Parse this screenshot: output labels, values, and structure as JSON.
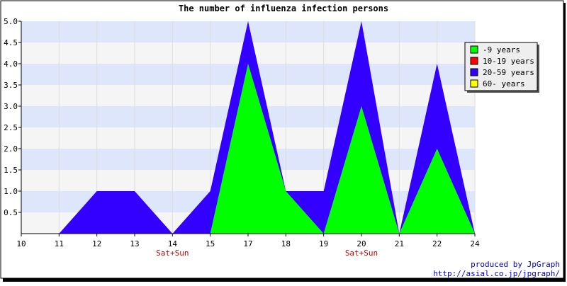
{
  "chart_data": {
    "type": "area",
    "stacked": true,
    "title": "The number of influenza infection persons",
    "xlabel": "",
    "ylabel": "",
    "x": [
      "10",
      "11",
      "12",
      "13",
      "14",
      "15",
      "17",
      "18",
      "19",
      "20",
      "21",
      "22",
      "24"
    ],
    "sub_labels": [
      "",
      "",
      "",
      "",
      "Sat+Sun",
      "",
      "",
      "",
      "",
      "Sat+Sun",
      "",
      "",
      ""
    ],
    "ylim": [
      0,
      5.0
    ],
    "yticks": [
      "0.5",
      "1.0",
      "1.5",
      "2.0",
      "2.5",
      "3.0",
      "3.5",
      "4.0",
      "4.5",
      "5.0"
    ],
    "grid": true,
    "legend_position": "top-right",
    "series": [
      {
        "name": "-9 years",
        "color": "#00ff00",
        "values": [
          0,
          0,
          0,
          0,
          0,
          0,
          4,
          1,
          0,
          3,
          0,
          2,
          0
        ]
      },
      {
        "name": "10-19 years",
        "color": "#ff0000",
        "values": [
          0,
          0,
          0,
          0,
          0,
          0,
          0,
          0,
          0,
          0,
          0,
          0,
          0
        ]
      },
      {
        "name": "20-59 years",
        "color": "#3300ff",
        "values": [
          0,
          0,
          1,
          1,
          0,
          1,
          1,
          0,
          1,
          2,
          0,
          2,
          0
        ]
      },
      {
        "name": "60- years",
        "color": "#ffff00",
        "values": [
          0,
          0,
          0,
          0,
          0,
          0,
          0,
          0,
          0,
          0,
          0,
          0,
          0
        ]
      }
    ]
  },
  "credits": {
    "line1": "produced by JpGraph",
    "line2": "http://asial.co.jp/jpgraph/"
  }
}
